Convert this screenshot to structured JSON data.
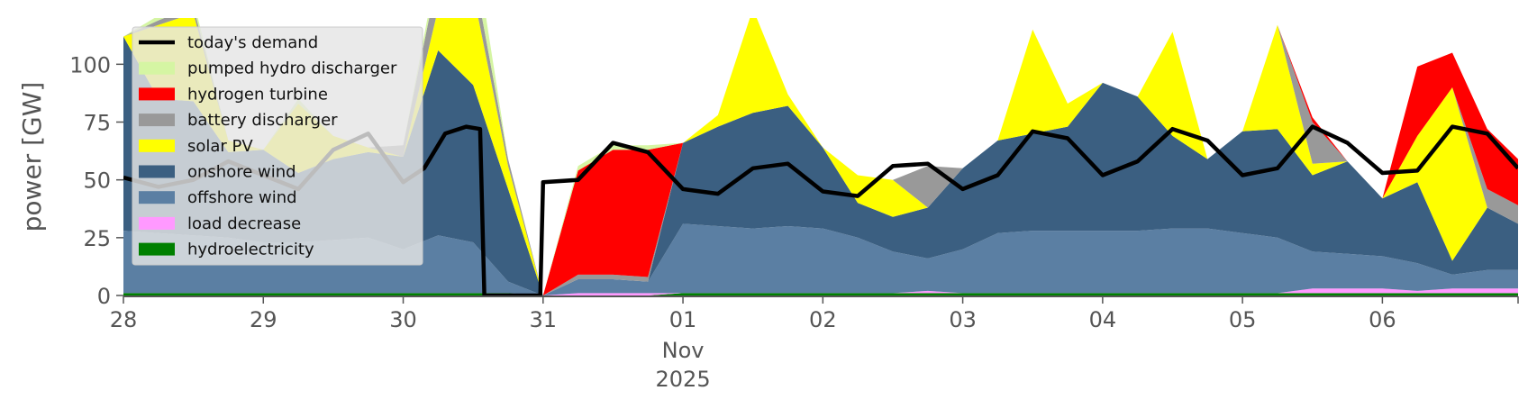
{
  "chart_data": {
    "type": "area",
    "title": "",
    "xlabel": "",
    "ylabel": "power [GW]",
    "ylim": [
      0,
      120
    ],
    "xlim": [
      0,
      9.97
    ],
    "x_unit": "days from 28 Oct 2025",
    "y_ticks": [
      0,
      25,
      50,
      75,
      100
    ],
    "x_ticks": [
      {
        "x": 0,
        "label": "28"
      },
      {
        "x": 1,
        "label": "29"
      },
      {
        "x": 2,
        "label": "30"
      },
      {
        "x": 3,
        "label": "31"
      },
      {
        "x": 4,
        "label": "01",
        "sub": [
          "Nov",
          "2025"
        ]
      },
      {
        "x": 5,
        "label": "02"
      },
      {
        "x": 6,
        "label": "03"
      },
      {
        "x": 7,
        "label": "04"
      },
      {
        "x": 8,
        "label": "05"
      },
      {
        "x": 9,
        "label": "06"
      }
    ],
    "grid": false,
    "legend_position": "top-left",
    "legend_order": [
      "today's demand",
      "pumped hydro discharger",
      "hydrogen turbine",
      "battery discharger",
      "solar PV",
      "onshore wind",
      "offshore wind",
      "load decrease",
      "hydroelectricity"
    ],
    "x": [
      0,
      0.25,
      0.5,
      0.75,
      1,
      1.25,
      1.5,
      1.75,
      2,
      2.25,
      2.5,
      2.75,
      3,
      3.25,
      3.5,
      3.75,
      4,
      4.25,
      4.5,
      4.75,
      5,
      5.25,
      5.5,
      5.75,
      6,
      6.25,
      6.5,
      6.75,
      7,
      7.25,
      7.5,
      7.75,
      8,
      8.25,
      8.5,
      8.75,
      9,
      9.25,
      9.5,
      9.75,
      9.97
    ],
    "stack_order": [
      "hydroelectricity",
      "load decrease",
      "offshore wind",
      "onshore wind",
      "solar PV",
      "battery discharger",
      "hydrogen turbine",
      "pumped hydro discharger"
    ],
    "series": [
      {
        "name": "hydroelectricity",
        "color": "#008000",
        "values": [
          1,
          1,
          1,
          1,
          1,
          1,
          1,
          1,
          1,
          1,
          1,
          1,
          0,
          0,
          0,
          0,
          1,
          1,
          1,
          1,
          1,
          1,
          1,
          1,
          1,
          1,
          1,
          1,
          1,
          1,
          1,
          1,
          1,
          1,
          1,
          1,
          1,
          1,
          1,
          1,
          1
        ]
      },
      {
        "name": "load decrease",
        "color": "#ff99ff",
        "values": [
          0,
          0,
          0,
          0,
          0,
          0,
          0,
          0,
          0,
          0,
          0,
          0,
          0,
          1,
          1,
          1,
          0,
          0,
          0,
          0,
          0,
          0,
          0,
          1,
          0,
          0,
          0,
          0,
          0,
          0,
          0,
          0,
          0,
          0,
          2,
          2,
          2,
          1,
          2,
          2,
          2
        ]
      },
      {
        "name": "offshore wind",
        "color": "#5b7fa3",
        "values": [
          27,
          26,
          25,
          24,
          22,
          22,
          23,
          24,
          19,
          25,
          22,
          5,
          0,
          6,
          6,
          5,
          30,
          29,
          28,
          29,
          28,
          24,
          18,
          14,
          19,
          26,
          27,
          27,
          27,
          27,
          28,
          28,
          26,
          24,
          16,
          15,
          14,
          12,
          6,
          8,
          8
        ]
      },
      {
        "name": "onshore wind",
        "color": "#3b5f81",
        "values": [
          84,
          58,
          58,
          37,
          40,
          30,
          35,
          37,
          40,
          80,
          68,
          40,
          0,
          0,
          0,
          0,
          35,
          43,
          50,
          52,
          35,
          15,
          15,
          22,
          35,
          40,
          42,
          45,
          64,
          58,
          40,
          30,
          44,
          47,
          33,
          40,
          25,
          35,
          6,
          27,
          20
        ]
      },
      {
        "name": "solar PV",
        "color": "#ffff00",
        "values": [
          0,
          32,
          38,
          5,
          0,
          30,
          10,
          2,
          0,
          18,
          40,
          10,
          0,
          0,
          0,
          0,
          0,
          5,
          45,
          5,
          0,
          12,
          16,
          0,
          0,
          0,
          45,
          10,
          0,
          0,
          45,
          0,
          0,
          45,
          5,
          0,
          0,
          20,
          75,
          0,
          0
        ]
      },
      {
        "name": "battery discharger",
        "color": "#999999",
        "values": [
          0,
          2,
          3,
          0,
          0,
          0,
          0,
          0,
          5,
          15,
          10,
          3,
          0,
          2,
          2,
          2,
          0,
          0,
          0,
          0,
          0,
          0,
          0,
          18,
          0,
          0,
          0,
          0,
          0,
          0,
          0,
          0,
          0,
          0,
          18,
          0,
          0,
          0,
          0,
          8,
          8
        ]
      },
      {
        "name": "hydrogen turbine",
        "color": "#ff0000",
        "values": [
          0,
          0,
          0,
          0,
          0,
          0,
          0,
          0,
          0,
          0,
          0,
          0,
          0,
          45,
          54,
          55,
          0,
          0,
          0,
          0,
          0,
          0,
          0,
          0,
          0,
          0,
          0,
          0,
          0,
          0,
          0,
          0,
          0,
          0,
          2,
          0,
          0,
          30,
          15,
          26,
          20
        ]
      },
      {
        "name": "pumped hydro discharger",
        "color": "#d5f5a3",
        "values": [
          0,
          2,
          3,
          0,
          0,
          2,
          0,
          0,
          0,
          5,
          15,
          0,
          0,
          2,
          2,
          2,
          0,
          0,
          0,
          0,
          0,
          0,
          0,
          0,
          0,
          0,
          0,
          0,
          0,
          0,
          0,
          0,
          0,
          0,
          0,
          0,
          0,
          0,
          0,
          0,
          0
        ]
      }
    ],
    "demand": {
      "name": "today's demand",
      "color": "#000000",
      "points": [
        [
          0,
          51
        ],
        [
          0.25,
          47
        ],
        [
          0.5,
          50
        ],
        [
          0.75,
          58
        ],
        [
          1,
          52
        ],
        [
          1.25,
          46
        ],
        [
          1.5,
          63
        ],
        [
          1.75,
          70
        ],
        [
          2,
          49
        ],
        [
          2.15,
          55
        ],
        [
          2.3,
          70
        ],
        [
          2.45,
          73
        ],
        [
          2.55,
          72
        ],
        [
          2.58,
          0
        ],
        [
          2.98,
          0
        ],
        [
          3,
          49
        ],
        [
          3.25,
          50
        ],
        [
          3.5,
          66
        ],
        [
          3.75,
          62
        ],
        [
          4,
          46
        ],
        [
          4.25,
          44
        ],
        [
          4.5,
          55
        ],
        [
          4.75,
          57
        ],
        [
          5,
          45
        ],
        [
          5.25,
          43
        ],
        [
          5.5,
          56
        ],
        [
          5.75,
          57
        ],
        [
          6,
          46
        ],
        [
          6.25,
          52
        ],
        [
          6.5,
          71
        ],
        [
          6.75,
          68
        ],
        [
          7,
          52
        ],
        [
          7.25,
          58
        ],
        [
          7.5,
          72
        ],
        [
          7.75,
          67
        ],
        [
          8,
          52
        ],
        [
          8.25,
          55
        ],
        [
          8.5,
          73
        ],
        [
          8.75,
          66
        ],
        [
          9,
          53
        ],
        [
          9.25,
          54
        ],
        [
          9.5,
          73
        ],
        [
          9.75,
          70
        ],
        [
          9.97,
          55
        ]
      ]
    }
  }
}
